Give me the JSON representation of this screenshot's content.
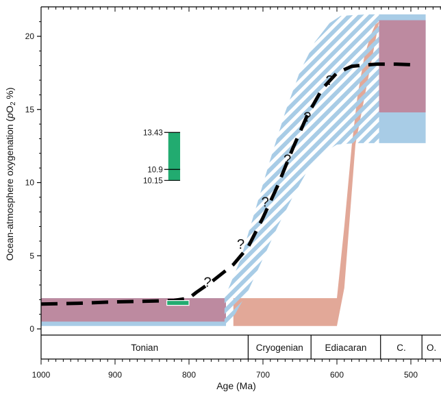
{
  "chart_data": {
    "type": "line",
    "title": "",
    "xlabel": "Age (Ma)",
    "ylabel": "Ocean-atmosphere oxygenation (pO2 %)",
    "ylabel_parts": {
      "main": "Ocean-atmosphere oxygenation (",
      "italic": "p",
      "base": "O",
      "sub": "2",
      "tail": " %)"
    },
    "xlim": [
      1000,
      480
    ],
    "ylim": [
      0,
      21.5
    ],
    "x_ticks": [
      1000,
      900,
      800,
      700,
      600,
      500
    ],
    "y_ticks": [
      0,
      5,
      10,
      15,
      20
    ],
    "periods": [
      {
        "label": "Tonian",
        "start": 1000,
        "end": 720
      },
      {
        "label": "Cryogenian",
        "start": 720,
        "end": 635
      },
      {
        "label": "Ediacaran",
        "start": 635,
        "end": 541
      },
      {
        "label": "C.",
        "start": 541,
        "end": 485
      },
      {
        "label": "O.",
        "start": 485,
        "end": 444
      }
    ],
    "series": [
      {
        "points": [
          [
            1000,
            1.7
          ],
          [
            950,
            1.75
          ],
          [
            900,
            1.85
          ],
          [
            850,
            1.9
          ],
          [
            820,
            1.95
          ],
          [
            800,
            2.1
          ],
          [
            790,
            2.5
          ],
          [
            770,
            3.2
          ],
          [
            740,
            4.4
          ],
          [
            720,
            5.6
          ],
          [
            700,
            7.6
          ],
          [
            680,
            9.8
          ],
          [
            660,
            12.3
          ],
          [
            640,
            14.6
          ],
          [
            620,
            16.4
          ],
          [
            600,
            17.5
          ],
          [
            580,
            17.95
          ],
          [
            560,
            18.05
          ],
          [
            545,
            18.1
          ],
          [
            520,
            18.1
          ],
          [
            495,
            18.05
          ]
        ],
        "color": "#000000",
        "style": "dashed"
      }
    ],
    "question_marks": {
      "label": "?",
      "points": [
        [
          775,
          3.2
        ],
        [
          730,
          5.8
        ],
        [
          697,
          8.7
        ],
        [
          667,
          11.6
        ],
        [
          640,
          14.5
        ],
        [
          610,
          17.0
        ]
      ]
    },
    "bands": [
      {
        "x_start": 1000,
        "x_end": 750,
        "y_low": 0.2,
        "y_high": 2.1,
        "color": "#a8cce6"
      },
      {
        "x_start": 1000,
        "x_end": 750,
        "y_low": 0.5,
        "y_high": 2.1,
        "color": "#bd8aa0"
      },
      {
        "x_start": 543,
        "x_end": 480,
        "y_low": 12.7,
        "y_high": 21.5,
        "color": "#a8cce6"
      },
      {
        "x_start": 543,
        "x_end": 480,
        "y_low": 14.8,
        "y_high": 21.1,
        "color": "#bd8aa0"
      }
    ],
    "hatched_region": {
      "color": "#a8cce6",
      "upper": [
        [
          752,
          2.1
        ],
        [
          730,
          4.8
        ],
        [
          710,
          8.2
        ],
        [
          690,
          11.6
        ],
        [
          670,
          14.8
        ],
        [
          650,
          17.6
        ],
        [
          630,
          19.6
        ],
        [
          610,
          20.9
        ],
        [
          595,
          21.4
        ],
        [
          560,
          21.5
        ],
        [
          543,
          21.5
        ]
      ],
      "lower": [
        [
          752,
          0.05
        ],
        [
          740,
          0.8
        ],
        [
          720,
          2.6
        ],
        [
          700,
          4.8
        ],
        [
          680,
          7.0
        ],
        [
          660,
          9.0
        ],
        [
          640,
          10.8
        ],
        [
          620,
          12.0
        ],
        [
          600,
          12.6
        ],
        [
          575,
          12.7
        ],
        [
          543,
          12.7
        ]
      ]
    },
    "pink_region": {
      "color": "#e2a898",
      "flat": {
        "x_start": 740,
        "x_end": 600,
        "y_low": 0.2,
        "y_high": 2.1
      },
      "rise_right": [
        [
          600,
          2.1
        ],
        [
          590,
          7.0
        ],
        [
          580,
          12.5
        ],
        [
          572,
          16.0
        ],
        [
          563,
          18.6
        ],
        [
          555,
          20.0
        ],
        [
          548,
          20.8
        ],
        [
          543,
          21.0
        ]
      ],
      "rise_left": [
        [
          600,
          0.2
        ],
        [
          590,
          2.8
        ],
        [
          582,
          8.0
        ],
        [
          575,
          12.6
        ]
      ]
    },
    "proxy_bar": {
      "color": "#22ab70",
      "x_start": 828,
      "x_end": 812,
      "min": 10.15,
      "mid": 10.9,
      "max": 13.43,
      "labels": [
        "13.43",
        "10.9",
        "10.15"
      ]
    },
    "green_marker": {
      "x_start": 830,
      "x_end": 800,
      "y": 1.8,
      "color": "#22ab70"
    }
  }
}
